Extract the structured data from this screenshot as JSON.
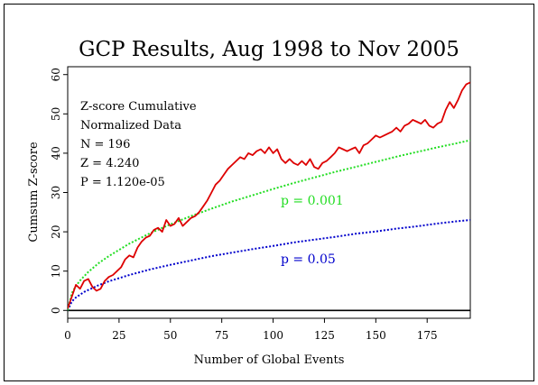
{
  "colors": {
    "frame": "#000000",
    "observed": "#dd0000",
    "p001": "#22dd22",
    "p05": "#0000cc",
    "baseline": "#000000",
    "background": "#ffffff"
  },
  "chart_data": {
    "type": "line",
    "title": "GCP Results, Aug 1998 to Nov 2005",
    "xlabel": "Number of Global Events",
    "ylabel": "Cumsum Z-score",
    "xlim": [
      0,
      196
    ],
    "ylim": [
      -2,
      62
    ],
    "xticks": [
      0,
      25,
      50,
      75,
      100,
      125,
      150,
      175
    ],
    "yticks": [
      0,
      10,
      20,
      30,
      40,
      50,
      60
    ],
    "grid": false,
    "stats": {
      "line1": "Z-score Cumulative",
      "line2": "Normalized Data",
      "line3": "N = 196",
      "line4": "Z = 4.240",
      "line5": "P = 1.120e-05"
    },
    "annotations": {
      "p001": "p = 0.001",
      "p05": "p = 0.05"
    },
    "series": [
      {
        "key": "observed",
        "style": "solid",
        "x": [
          0,
          2,
          4,
          6,
          8,
          10,
          12,
          14,
          16,
          18,
          20,
          22,
          24,
          26,
          28,
          30,
          32,
          34,
          36,
          38,
          40,
          42,
          44,
          46,
          48,
          50,
          52,
          54,
          56,
          58,
          60,
          62,
          64,
          66,
          68,
          70,
          72,
          74,
          76,
          78,
          80,
          82,
          84,
          86,
          88,
          90,
          92,
          94,
          96,
          98,
          100,
          102,
          104,
          106,
          108,
          110,
          112,
          114,
          116,
          118,
          120,
          122,
          124,
          126,
          128,
          130,
          132,
          134,
          136,
          138,
          140,
          142,
          144,
          146,
          148,
          150,
          152,
          154,
          156,
          158,
          160,
          162,
          164,
          166,
          168,
          170,
          172,
          174,
          176,
          178,
          180,
          182,
          184,
          186,
          188,
          190,
          192,
          194,
          196
        ],
        "values": [
          0.5,
          3.5,
          6.5,
          5.5,
          7.5,
          8.0,
          6.0,
          5.0,
          5.5,
          7.5,
          8.5,
          9.0,
          10.0,
          11.0,
          13.0,
          14.0,
          13.5,
          16.0,
          17.5,
          18.5,
          19.0,
          20.5,
          21.0,
          20.0,
          23.0,
          21.5,
          22.0,
          23.5,
          21.5,
          22.5,
          23.5,
          24.0,
          25.0,
          26.5,
          28.0,
          30.0,
          32.0,
          33.0,
          34.5,
          36.0,
          37.0,
          38.0,
          39.0,
          38.5,
          40.0,
          39.5,
          40.5,
          41.0,
          40.0,
          41.5,
          40.0,
          41.0,
          38.5,
          37.5,
          38.5,
          37.5,
          37.0,
          38.0,
          37.0,
          38.5,
          36.5,
          36.0,
          37.5,
          38.0,
          39.0,
          40.0,
          41.5,
          41.0,
          40.5,
          41.0,
          41.5,
          40.0,
          42.0,
          42.5,
          43.5,
          44.5,
          44.0,
          44.5,
          45.0,
          45.5,
          46.5,
          45.5,
          47.0,
          47.5,
          48.5,
          48.0,
          47.5,
          48.5,
          47.0,
          46.5,
          47.5,
          48.0,
          51.0,
          53.0,
          51.5,
          53.5,
          56.0,
          57.5,
          58.0
        ]
      },
      {
        "key": "p001",
        "style": "dotted",
        "x": [
          0,
          2,
          4,
          6,
          8,
          10,
          15,
          20,
          30,
          40,
          50,
          60,
          70,
          80,
          90,
          100,
          110,
          120,
          130,
          140,
          150,
          160,
          170,
          180,
          190,
          196
        ],
        "values": [
          0,
          4.4,
          6.2,
          7.6,
          8.7,
          9.8,
          12.0,
          13.8,
          17.0,
          19.6,
          21.9,
          24.0,
          25.9,
          27.7,
          29.3,
          30.9,
          32.4,
          33.8,
          35.2,
          36.5,
          37.8,
          39.1,
          40.3,
          41.5,
          42.6,
          43.3
        ]
      },
      {
        "key": "p05",
        "style": "dotted",
        "x": [
          0,
          2,
          4,
          6,
          8,
          10,
          15,
          20,
          30,
          40,
          50,
          60,
          70,
          80,
          90,
          100,
          110,
          120,
          130,
          140,
          150,
          160,
          170,
          180,
          190,
          196
        ],
        "values": [
          0,
          2.3,
          3.3,
          4.0,
          4.7,
          5.2,
          6.4,
          7.4,
          9.0,
          10.4,
          11.6,
          12.7,
          13.8,
          14.7,
          15.6,
          16.4,
          17.3,
          18.0,
          18.7,
          19.5,
          20.1,
          20.8,
          21.4,
          22.1,
          22.7,
          23.0
        ]
      }
    ]
  }
}
